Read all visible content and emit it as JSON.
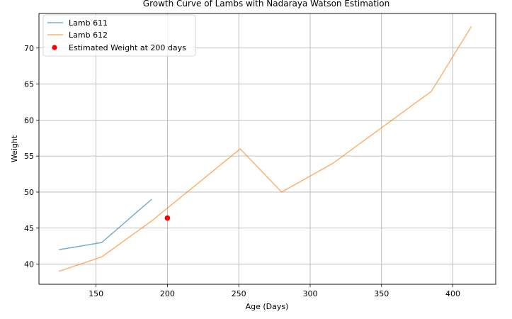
{
  "chart_data": {
    "type": "line",
    "title": "Growth Curve of Lambs with Nadaraya Watson Estimation",
    "xlabel": "Age (Days)",
    "ylabel": "Weight",
    "xlim": [
      110,
      430
    ],
    "ylim": [
      37.2,
      74.8
    ],
    "xticks": [
      150,
      200,
      250,
      300,
      350,
      400
    ],
    "yticks": [
      40,
      45,
      50,
      55,
      60,
      65,
      70
    ],
    "grid": true,
    "legend_position": "upper-left",
    "series": [
      {
        "name": "Lamb 611",
        "kind": "line",
        "color": "#1f77b4",
        "x": [
          124,
          154,
          189
        ],
        "y": [
          42,
          43,
          49
        ]
      },
      {
        "name": "Lamb 612",
        "kind": "line",
        "color": "#ff7f0e",
        "x": [
          124,
          154,
          189,
          251,
          280,
          316,
          385,
          413
        ],
        "y": [
          39,
          41,
          46,
          56,
          50,
          54,
          64,
          73
        ]
      },
      {
        "name": "Estimated Weight at 200 days",
        "kind": "point",
        "color": "#ff0000",
        "x": [
          200
        ],
        "y": [
          46.4
        ]
      }
    ]
  }
}
